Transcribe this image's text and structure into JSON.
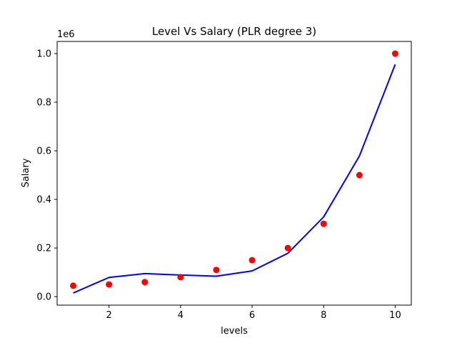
{
  "chart_data": {
    "type": "scatter",
    "title": "Level Vs Salary (PLR degree 3)",
    "xlabel": "levels",
    "ylabel": "Salary",
    "y_offset_label": "1e6",
    "xlim": [
      0.55,
      10.45
    ],
    "ylim": [
      -35000,
      1050000
    ],
    "x_ticks": [
      2,
      4,
      6,
      8,
      10
    ],
    "x_tick_labels": [
      "2",
      "4",
      "6",
      "8",
      "10"
    ],
    "y_ticks": [
      0,
      200000,
      400000,
      600000,
      800000,
      1000000
    ],
    "y_tick_labels": [
      "0.0",
      "0.2",
      "0.4",
      "0.6",
      "0.8",
      "1.0"
    ],
    "grid": false,
    "legend": "none",
    "series": [
      {
        "kind": "scatter",
        "color": "#ff0000",
        "x": [
          1,
          2,
          3,
          4,
          5,
          6,
          7,
          8,
          9,
          10
        ],
        "y": [
          45000,
          50000,
          60000,
          80000,
          110000,
          150000,
          200000,
          300000,
          500000,
          1000000
        ]
      },
      {
        "kind": "line",
        "color": "#0000ff",
        "x": [
          1,
          2,
          3,
          4,
          5,
          6,
          7,
          8,
          9,
          10
        ],
        "y": [
          14902,
          78932,
          94739,
          88909,
          84028,
          105683,
          178462,
          327951,
          578739,
          955411
        ]
      }
    ]
  }
}
